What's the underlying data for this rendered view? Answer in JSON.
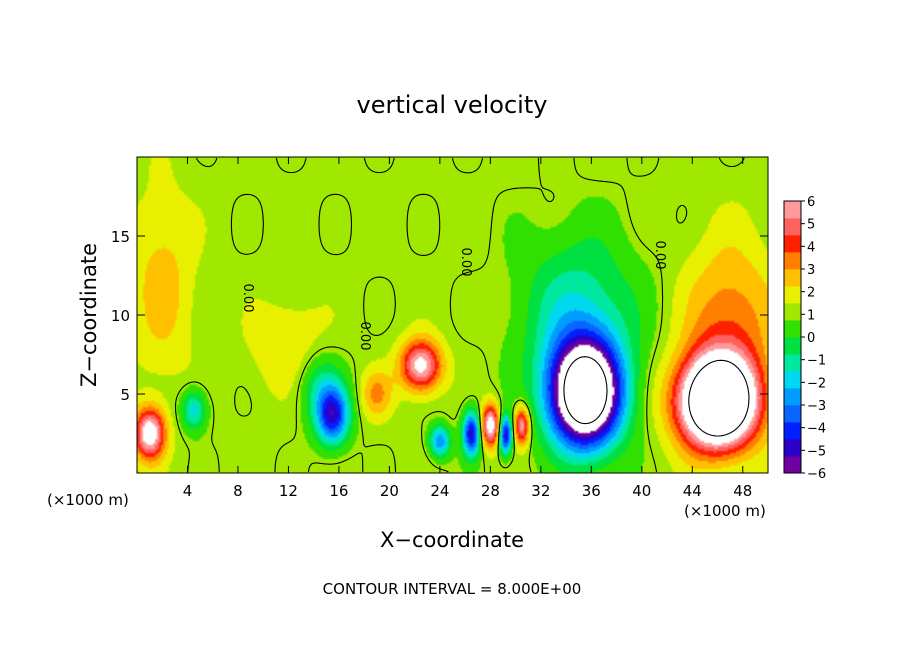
{
  "chart_data": {
    "type": "heatmap",
    "title": "vertical velocity",
    "xlabel": "X−coordinate",
    "ylabel": "Z−coordinate",
    "x_unit": "(×1000 m)",
    "y_unit": "(×1000 m)",
    "xlim": [
      0,
      50
    ],
    "ylim": [
      0,
      20
    ],
    "x_ticks": [
      4,
      8,
      12,
      16,
      20,
      24,
      28,
      32,
      36,
      40,
      44,
      48
    ],
    "y_ticks": [
      5,
      10,
      15
    ],
    "x_tick_labels": [
      "4",
      "8",
      "12",
      "16",
      "20",
      "24",
      "28",
      "32",
      "36",
      "40",
      "44",
      "48"
    ],
    "y_tick_labels": [
      "5",
      "10",
      "15"
    ],
    "colorbar": {
      "min": -6,
      "max": 6,
      "ticks": [
        6,
        5,
        4,
        3,
        2,
        1,
        0,
        -1,
        -2,
        -3,
        -4,
        -5,
        -6
      ],
      "tick_labels": [
        "6",
        "5",
        "4",
        "3",
        "2",
        "1",
        "0",
        "−1",
        "−2",
        "−3",
        "−4",
        "−5",
        "−6"
      ],
      "colors": [
        "#7000a0",
        "#2c00c8",
        "#0020ff",
        "#0a64ff",
        "#009cff",
        "#00d8f0",
        "#00e8a0",
        "#00e040",
        "#30e000",
        "#a0e800",
        "#e8f000",
        "#ffc000",
        "#ff8000",
        "#ff2000",
        "#ff6060",
        "#ff9a9a"
      ]
    },
    "contour_label": "0.00",
    "contour_interval_text": "CONTOUR INTERVAL = 8.000E+00",
    "features": [
      {
        "x": 1.0,
        "z": 2.5,
        "w": 6,
        "sx": 1.2,
        "sz": 1.6
      },
      {
        "x": 4.5,
        "z": 4.0,
        "w": -3,
        "sx": 1.0,
        "sz": 1.3
      },
      {
        "x": 15.5,
        "z": 3.6,
        "w": -5.5,
        "sx": 1.3,
        "sz": 1.8
      },
      {
        "x": 14.5,
        "z": 5.5,
        "w": -2,
        "sx": 1.8,
        "sz": 2.2
      },
      {
        "x": 22.5,
        "z": 6.8,
        "w": 5.5,
        "sx": 1.6,
        "sz": 1.6
      },
      {
        "x": 24.0,
        "z": 2.0,
        "w": -4,
        "sx": 0.8,
        "sz": 1.0
      },
      {
        "x": 26.5,
        "z": 2.5,
        "w": -6,
        "sx": 0.7,
        "sz": 1.4
      },
      {
        "x": 28.0,
        "z": 3.0,
        "w": 6,
        "sx": 0.7,
        "sz": 1.3
      },
      {
        "x": 29.2,
        "z": 2.4,
        "w": -6,
        "sx": 0.5,
        "sz": 1.2
      },
      {
        "x": 30.5,
        "z": 3.0,
        "w": 5,
        "sx": 0.6,
        "sz": 1.2
      },
      {
        "x": 35.5,
        "z": 5.0,
        "w": -12,
        "sx": 2.8,
        "sz": 3.3
      },
      {
        "x": 35.0,
        "z": 10.0,
        "w": -2.5,
        "sx": 4.5,
        "sz": 5.0
      },
      {
        "x": 46.0,
        "z": 4.5,
        "w": 12,
        "sx": 3.0,
        "sz": 2.8
      },
      {
        "x": 47.0,
        "z": 9.5,
        "w": 2.5,
        "sx": 3.5,
        "sz": 5.0
      },
      {
        "x": 2.0,
        "z": 12.0,
        "w": 1.5,
        "sx": 2.5,
        "sz": 6.0
      },
      {
        "x": 12.0,
        "z": 8.0,
        "w": 1.2,
        "sx": 3.0,
        "sz": 3.0
      },
      {
        "x": 19.0,
        "z": 5.0,
        "w": 2.0,
        "sx": 1.2,
        "sz": 1.5
      }
    ]
  }
}
